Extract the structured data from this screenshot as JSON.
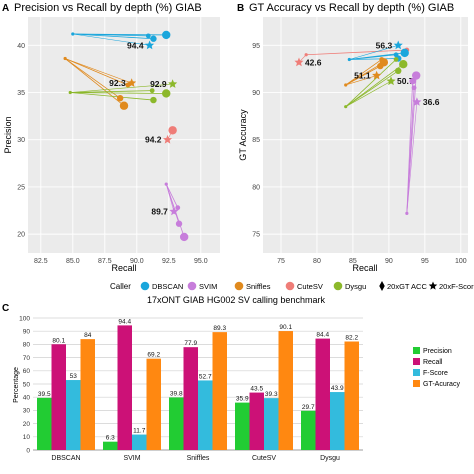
{
  "panels": {
    "a": {
      "letter": "A"
    },
    "b": {
      "letter": "B"
    },
    "c": {
      "letter": "C"
    }
  },
  "legend": {
    "title": "Caller",
    "items": [
      {
        "name": "DBSCAN",
        "color": "#1aa6dc"
      },
      {
        "name": "SVIM",
        "color": "#c77ddb"
      },
      {
        "name": "Sniffles",
        "color": "#e08a1e"
      },
      {
        "name": "CuteSV",
        "color": "#ef7d78"
      },
      {
        "name": "Dysgu",
        "color": "#8cb82b"
      }
    ],
    "markers": [
      "20xGT ACC",
      "20xF-Score"
    ]
  },
  "chart_data": [
    {
      "type": "scatter",
      "title": "Precision vs Recall by depth (%) GIAB",
      "xlabel": "Recall",
      "ylabel": "Precision",
      "xlim": [
        81.5,
        96.5
      ],
      "ylim": [
        18,
        43
      ],
      "xticks": [
        "82.5",
        "85.0",
        "87.5",
        "90.0",
        "92.5",
        "95.0"
      ],
      "xtick_values": [
        82.5,
        85.0,
        87.5,
        90.0,
        92.5,
        95.0
      ],
      "yticks": [
        "20",
        "25",
        "30",
        "35",
        "40"
      ],
      "ytick_values": [
        20,
        25,
        30,
        35,
        40
      ],
      "grid": true,
      "series": [
        {
          "name": "DBSCAN",
          "color": "#1aa6dc",
          "points": [
            [
              85.0,
              41.2
            ],
            [
              90.9,
              41.0
            ],
            [
              91.3,
              40.7
            ],
            [
              92.3,
              41.1
            ]
          ],
          "star": [
            91.0,
            40.0
          ],
          "star_label": "94.4"
        },
        {
          "name": "Sniffles",
          "color": "#e08a1e",
          "points": [
            [
              84.4,
              38.6
            ],
            [
              89.3,
              35.8
            ],
            [
              88.7,
              34.4
            ],
            [
              89.0,
              33.6
            ]
          ],
          "star": [
            89.6,
            36.0
          ],
          "star_label": "92.3"
        },
        {
          "name": "Dysgu",
          "color": "#8cb82b",
          "points": [
            [
              84.8,
              35.0
            ],
            [
              91.2,
              35.2
            ],
            [
              91.3,
              34.2
            ],
            [
              92.3,
              34.9
            ]
          ],
          "star": [
            92.8,
            35.9
          ],
          "star_label": "92.9"
        },
        {
          "name": "CuteSV",
          "color": "#ef7d78",
          "points": [
            [
              92.8,
              31.0
            ]
          ],
          "star": [
            92.4,
            30.0
          ],
          "star_label": "94.2"
        },
        {
          "name": "SVIM",
          "color": "#c77ddb",
          "points": [
            [
              92.3,
              25.3
            ],
            [
              93.2,
              22.8
            ],
            [
              93.3,
              21.1
            ],
            [
              93.7,
              19.7
            ]
          ],
          "star": [
            92.9,
            22.4
          ],
          "star_label": "89.7"
        }
      ]
    },
    {
      "type": "scatter",
      "title": "GT Accuracy vs Recall by depth (%) GIAB",
      "xlabel": "Recall",
      "ylabel": "GT Accuracy",
      "xlim": [
        72.5,
        101
      ],
      "ylim": [
        73,
        98
      ],
      "xticks": [
        "75",
        "80",
        "85",
        "90",
        "95",
        "100"
      ],
      "xtick_values": [
        75,
        80,
        85,
        90,
        95,
        100
      ],
      "yticks": [
        "75",
        "80",
        "85",
        "90",
        "95"
      ],
      "ytick_values": [
        75,
        80,
        85,
        90,
        95
      ],
      "grid": true,
      "series": [
        {
          "name": "CuteSV",
          "color": "#ef7d78",
          "points": [
            [
              78.5,
              94.0
            ],
            [
              92.5,
              94.5
            ]
          ],
          "star": [
            77.5,
            93.2
          ],
          "star_label": "42.6"
        },
        {
          "name": "DBSCAN",
          "color": "#1aa6dc",
          "points": [
            [
              84.5,
              93.5
            ],
            [
              91.0,
              94.0
            ],
            [
              91.3,
              93.6
            ],
            [
              92.2,
              94.2
            ]
          ],
          "star": [
            91.3,
            95.0
          ],
          "star_label": "56.3"
        },
        {
          "name": "Sniffles",
          "color": "#e08a1e",
          "points": [
            [
              84.0,
              90.8
            ],
            [
              89.0,
              93.5
            ],
            [
              88.8,
              92.8
            ],
            [
              89.3,
              93.2
            ]
          ],
          "star": [
            88.3,
            91.8
          ],
          "star_label": "51.1"
        },
        {
          "name": "Dysgu",
          "color": "#8cb82b",
          "points": [
            [
              84.0,
              88.5
            ],
            [
              91.0,
              93.5
            ],
            [
              91.3,
              92.3
            ],
            [
              92.0,
              93.0
            ]
          ],
          "star": [
            90.3,
            91.2
          ],
          "star_label": "50.7"
        },
        {
          "name": "SVIM",
          "color": "#c77ddb",
          "points": [
            [
              92.5,
              77.2
            ],
            [
              93.5,
              90.5
            ],
            [
              93.3,
              91.2
            ],
            [
              93.8,
              91.8
            ]
          ],
          "star": [
            93.9,
            89.0
          ],
          "star_label": "36.6"
        }
      ]
    },
    {
      "type": "bar",
      "title": "17xONT GIAB HG002 SV calling benchmark",
      "xlabel": "",
      "ylabel": "Percentage",
      "ylim": [
        0,
        100
      ],
      "yticks": [
        "0",
        "10",
        "20",
        "30",
        "40",
        "50",
        "60",
        "70",
        "80",
        "90",
        "100"
      ],
      "ytick_values": [
        0,
        10,
        20,
        30,
        40,
        50,
        60,
        70,
        80,
        90,
        100
      ],
      "grid": true,
      "legend_placement": "right",
      "categories": [
        "DBSCAN",
        "SVIM",
        "Sniffles",
        "CuteSV",
        "Dysgu"
      ],
      "series": [
        {
          "name": "Precision",
          "color": "#22cc33",
          "values": [
            39.5,
            6.3,
            39.8,
            35.9,
            29.7
          ]
        },
        {
          "name": "Recall",
          "color": "#cc1177",
          "values": [
            80.1,
            94.4,
            77.9,
            43.5,
            84.4
          ]
        },
        {
          "name": "F-Score",
          "color": "#33bbdd",
          "values": [
            53,
            11.7,
            52.7,
            39.3,
            43.9
          ]
        },
        {
          "name": "GT-Acuracy",
          "color": "#ff8811",
          "values": [
            84,
            69.2,
            89.3,
            90.1,
            82.2
          ]
        }
      ]
    }
  ]
}
